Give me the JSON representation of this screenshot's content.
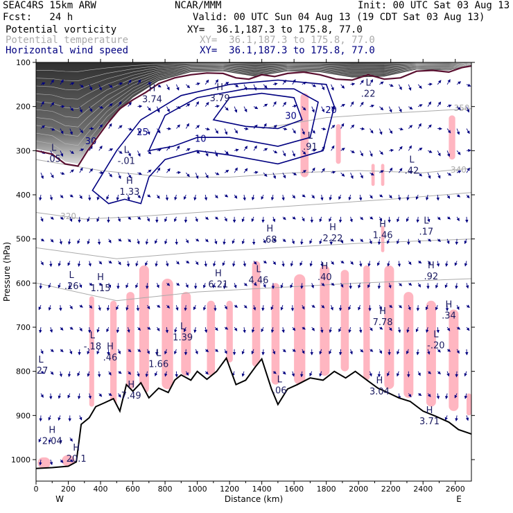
{
  "header": {
    "model": "SEAC4RS 15km ARW",
    "org": "NCAR/MMM",
    "init": "Init: 00 UTC Sat 03 Aug 13",
    "fcst": "Fcst:   24 h",
    "valid": "Valid: 00 UTC Sun 04 Aug 13 (19 CDT Sat 03 Aug 13)",
    "fields": [
      {
        "name": "Potential vorticity",
        "xy": "XY=  36.1,187.3 to 175.8, 77.0",
        "color": "#000000"
      },
      {
        "name": "Potential temperature",
        "xy": "XY=  36.1,187.3 to 175.8, 77.0",
        "color": "#aaaaaa"
      },
      {
        "name": "Horizontal wind speed",
        "xy": "XY=  36.1,187.3 to 175.8, 77.0",
        "color": "#000080"
      }
    ]
  },
  "chart_data": {
    "type": "cross-section",
    "xlabel": "Distance (km)",
    "ylabel": "Pressure (hPa)",
    "xlim": [
      0,
      2700
    ],
    "ylim": [
      1050,
      100
    ],
    "x_ticks": [
      0,
      200,
      400,
      600,
      800,
      1000,
      1200,
      1400,
      1600,
      1800,
      2000,
      2200,
      2400,
      2600
    ],
    "y_ticks": [
      100,
      200,
      300,
      400,
      500,
      600,
      700,
      800,
      900,
      1000
    ],
    "left_end_label": "W",
    "right_end_label": "E",
    "colors": {
      "terrain": "#000000",
      "tropopause_pv": "#5a1030",
      "wind_speed": "#000080",
      "theta": "#aaaaaa",
      "pv_shade": "#ffb6c1",
      "stratosphere": "#404040"
    },
    "terrain": [
      {
        "x": 0,
        "p": 1020
      },
      {
        "x": 100,
        "p": 1018
      },
      {
        "x": 200,
        "p": 1015
      },
      {
        "x": 250,
        "p": 1005
      },
      {
        "x": 280,
        "p": 920
      },
      {
        "x": 330,
        "p": 905
      },
      {
        "x": 370,
        "p": 880
      },
      {
        "x": 420,
        "p": 872
      },
      {
        "x": 480,
        "p": 862
      },
      {
        "x": 520,
        "p": 890
      },
      {
        "x": 560,
        "p": 830
      },
      {
        "x": 600,
        "p": 845
      },
      {
        "x": 650,
        "p": 826
      },
      {
        "x": 700,
        "p": 860
      },
      {
        "x": 760,
        "p": 838
      },
      {
        "x": 820,
        "p": 848
      },
      {
        "x": 860,
        "p": 820
      },
      {
        "x": 900,
        "p": 808
      },
      {
        "x": 960,
        "p": 820
      },
      {
        "x": 1000,
        "p": 800
      },
      {
        "x": 1060,
        "p": 818
      },
      {
        "x": 1120,
        "p": 800
      },
      {
        "x": 1180,
        "p": 770
      },
      {
        "x": 1240,
        "p": 830
      },
      {
        "x": 1300,
        "p": 820
      },
      {
        "x": 1360,
        "p": 790
      },
      {
        "x": 1400,
        "p": 772
      },
      {
        "x": 1460,
        "p": 840
      },
      {
        "x": 1500,
        "p": 875
      },
      {
        "x": 1560,
        "p": 840
      },
      {
        "x": 1620,
        "p": 830
      },
      {
        "x": 1700,
        "p": 815
      },
      {
        "x": 1780,
        "p": 820
      },
      {
        "x": 1850,
        "p": 800
      },
      {
        "x": 1920,
        "p": 815
      },
      {
        "x": 1980,
        "p": 800
      },
      {
        "x": 2060,
        "p": 822
      },
      {
        "x": 2120,
        "p": 838
      },
      {
        "x": 2180,
        "p": 848
      },
      {
        "x": 2250,
        "p": 860
      },
      {
        "x": 2320,
        "p": 868
      },
      {
        "x": 2400,
        "p": 890
      },
      {
        "x": 2480,
        "p": 902
      },
      {
        "x": 2560,
        "p": 915
      },
      {
        "x": 2620,
        "p": 932
      },
      {
        "x": 2700,
        "p": 942
      }
    ],
    "tropopause_pv": [
      {
        "x": 0,
        "p": 300
      },
      {
        "x": 100,
        "p": 308
      },
      {
        "x": 180,
        "p": 330
      },
      {
        "x": 260,
        "p": 335
      },
      {
        "x": 320,
        "p": 300
      },
      {
        "x": 380,
        "p": 270
      },
      {
        "x": 440,
        "p": 240
      },
      {
        "x": 520,
        "p": 205
      },
      {
        "x": 600,
        "p": 185
      },
      {
        "x": 680,
        "p": 168
      },
      {
        "x": 760,
        "p": 148
      },
      {
        "x": 860,
        "p": 135
      },
      {
        "x": 960,
        "p": 128
      },
      {
        "x": 1060,
        "p": 124
      },
      {
        "x": 1160,
        "p": 125
      },
      {
        "x": 1240,
        "p": 135
      },
      {
        "x": 1320,
        "p": 138
      },
      {
        "x": 1400,
        "p": 128
      },
      {
        "x": 1480,
        "p": 132
      },
      {
        "x": 1560,
        "p": 125
      },
      {
        "x": 1660,
        "p": 122
      },
      {
        "x": 1760,
        "p": 128
      },
      {
        "x": 1860,
        "p": 138
      },
      {
        "x": 1960,
        "p": 140
      },
      {
        "x": 2060,
        "p": 128
      },
      {
        "x": 2160,
        "p": 138
      },
      {
        "x": 2260,
        "p": 135
      },
      {
        "x": 2360,
        "p": 120
      },
      {
        "x": 2460,
        "p": 118
      },
      {
        "x": 2560,
        "p": 122
      },
      {
        "x": 2640,
        "p": 112
      },
      {
        "x": 2700,
        "p": 108
      }
    ],
    "stratosphere_shade": [
      {
        "x": 0,
        "p": 100
      },
      {
        "x": 2700,
        "p": 100
      },
      {
        "x": 2700,
        "p": 106
      },
      {
        "x": 2560,
        "p": 118
      },
      {
        "x": 2360,
        "p": 116
      },
      {
        "x": 2160,
        "p": 132
      },
      {
        "x": 1960,
        "p": 134
      },
      {
        "x": 1760,
        "p": 122
      },
      {
        "x": 1560,
        "p": 120
      },
      {
        "x": 1360,
        "p": 132
      },
      {
        "x": 1160,
        "p": 120
      },
      {
        "x": 960,
        "p": 122
      },
      {
        "x": 760,
        "p": 142
      },
      {
        "x": 600,
        "p": 180
      },
      {
        "x": 440,
        "p": 236
      },
      {
        "x": 320,
        "p": 296
      },
      {
        "x": 260,
        "p": 330
      },
      {
        "x": 180,
        "p": 325
      },
      {
        "x": 100,
        "p": 303
      },
      {
        "x": 0,
        "p": 296
      }
    ],
    "theta_contours": [
      {
        "label": "320",
        "label_x": 200,
        "label_p": 455,
        "points": [
          {
            "x": 0,
            "p": 440
          },
          {
            "x": 300,
            "p": 455
          },
          {
            "x": 600,
            "p": 450
          },
          {
            "x": 1000,
            "p": 440
          },
          {
            "x": 1400,
            "p": 430
          },
          {
            "x": 1800,
            "p": 420
          },
          {
            "x": 2200,
            "p": 410
          },
          {
            "x": 2700,
            "p": 395
          }
        ]
      },
      {
        "label": "340",
        "label_x": 2620,
        "label_p": 350,
        "points": [
          {
            "x": 0,
            "p": 320
          },
          {
            "x": 400,
            "p": 345
          },
          {
            "x": 800,
            "p": 360
          },
          {
            "x": 1200,
            "p": 360
          },
          {
            "x": 1600,
            "p": 350
          },
          {
            "x": 2000,
            "p": 345
          },
          {
            "x": 2400,
            "p": 350
          },
          {
            "x": 2700,
            "p": 340
          }
        ]
      },
      {
        "label": "350",
        "label_x": 2640,
        "label_p": 210,
        "points": [
          {
            "x": 1400,
            "p": 250
          },
          {
            "x": 1800,
            "p": 225
          },
          {
            "x": 2200,
            "p": 215
          },
          {
            "x": 2700,
            "p": 205
          }
        ]
      },
      {
        "label": "",
        "label_x": 0,
        "label_p": 0,
        "points": [
          {
            "x": 0,
            "p": 600
          },
          {
            "x": 500,
            "p": 640
          },
          {
            "x": 1000,
            "p": 620
          },
          {
            "x": 1500,
            "p": 610
          },
          {
            "x": 2000,
            "p": 600
          },
          {
            "x": 2700,
            "p": 590
          }
        ]
      },
      {
        "label": "",
        "label_x": 0,
        "label_p": 0,
        "points": [
          {
            "x": 0,
            "p": 520
          },
          {
            "x": 500,
            "p": 545
          },
          {
            "x": 1000,
            "p": 530
          },
          {
            "x": 1500,
            "p": 520
          },
          {
            "x": 2000,
            "p": 510
          },
          {
            "x": 2700,
            "p": 500
          }
        ]
      }
    ],
    "wind_speed_contours": [
      {
        "label": "10",
        "points": [
          {
            "x": 350,
            "p": 390
          },
          {
            "x": 500,
            "p": 300
          },
          {
            "x": 650,
            "p": 230
          },
          {
            "x": 900,
            "p": 175
          },
          {
            "x": 1200,
            "p": 150
          },
          {
            "x": 1500,
            "p": 140
          },
          {
            "x": 1800,
            "p": 150
          },
          {
            "x": 1850,
            "p": 200
          },
          {
            "x": 1780,
            "p": 300
          },
          {
            "x": 1500,
            "p": 330
          },
          {
            "x": 1200,
            "p": 310
          },
          {
            "x": 1000,
            "p": 300
          },
          {
            "x": 800,
            "p": 320
          },
          {
            "x": 700,
            "p": 360
          },
          {
            "x": 650,
            "p": 420
          },
          {
            "x": 550,
            "p": 410
          },
          {
            "x": 450,
            "p": 420
          }
        ]
      },
      {
        "label": "20",
        "points": [
          {
            "x": 700,
            "p": 300
          },
          {
            "x": 800,
            "p": 220
          },
          {
            "x": 1000,
            "p": 180
          },
          {
            "x": 1300,
            "p": 160
          },
          {
            "x": 1600,
            "p": 160
          },
          {
            "x": 1750,
            "p": 190
          },
          {
            "x": 1700,
            "p": 270
          },
          {
            "x": 1500,
            "p": 290
          },
          {
            "x": 1200,
            "p": 270
          },
          {
            "x": 1000,
            "p": 270
          },
          {
            "x": 850,
            "p": 290
          }
        ]
      },
      {
        "label": "30",
        "points": [
          {
            "x": 1100,
            "p": 230
          },
          {
            "x": 1200,
            "p": 180
          },
          {
            "x": 1400,
            "p": 170
          },
          {
            "x": 1600,
            "p": 180
          },
          {
            "x": 1650,
            "p": 230
          },
          {
            "x": 1500,
            "p": 250
          },
          {
            "x": 1300,
            "p": 245
          }
        ]
      }
    ],
    "wind_speed_labels": [
      {
        "text": "10",
        "x": 1020,
        "p": 280
      },
      {
        "text": "20",
        "x": 1830,
        "p": 215
      },
      {
        "text": "30",
        "x": 1580,
        "p": 228
      },
      {
        "text": "25",
        "x": 660,
        "p": 265
      },
      {
        "text": "30",
        "x": 340,
        "p": 285
      }
    ],
    "pv_shaded_regions": [
      {
        "x0": 330,
        "x1": 360,
        "p0": 630,
        "p1": 880
      },
      {
        "x0": 460,
        "x1": 500,
        "p0": 640,
        "p1": 880
      },
      {
        "x0": 560,
        "x1": 610,
        "p0": 620,
        "p1": 840
      },
      {
        "x0": 640,
        "x1": 700,
        "p0": 560,
        "p1": 850
      },
      {
        "x0": 780,
        "x1": 850,
        "p0": 590,
        "p1": 840
      },
      {
        "x0": 900,
        "x1": 960,
        "p0": 620,
        "p1": 810
      },
      {
        "x0": 1060,
        "x1": 1110,
        "p0": 640,
        "p1": 810
      },
      {
        "x0": 1180,
        "x1": 1220,
        "p0": 640,
        "p1": 780
      },
      {
        "x0": 1340,
        "x1": 1390,
        "p0": 550,
        "p1": 790
      },
      {
        "x0": 1460,
        "x1": 1510,
        "p0": 600,
        "p1": 830
      },
      {
        "x0": 1600,
        "x1": 1670,
        "p0": 580,
        "p1": 830
      },
      {
        "x0": 1760,
        "x1": 1820,
        "p0": 560,
        "p1": 810
      },
      {
        "x0": 1890,
        "x1": 1940,
        "p0": 570,
        "p1": 800
      },
      {
        "x0": 2030,
        "x1": 2070,
        "p0": 560,
        "p1": 820
      },
      {
        "x0": 2160,
        "x1": 2220,
        "p0": 560,
        "p1": 840
      },
      {
        "x0": 2280,
        "x1": 2340,
        "p0": 620,
        "p1": 860
      },
      {
        "x0": 2420,
        "x1": 2480,
        "p0": 640,
        "p1": 880
      },
      {
        "x0": 2560,
        "x1": 2620,
        "p0": 660,
        "p1": 890
      },
      {
        "x0": 1640,
        "x1": 1690,
        "p0": 170,
        "p1": 360
      },
      {
        "x0": 1860,
        "x1": 1890,
        "p0": 240,
        "p1": 330
      },
      {
        "x0": 2560,
        "x1": 2600,
        "p0": 220,
        "p1": 320
      },
      {
        "x0": 2140,
        "x1": 2160,
        "p0": 330,
        "p1": 380
      },
      {
        "x0": 2080,
        "x1": 2100,
        "p0": 330,
        "p1": 380
      },
      {
        "x0": 2140,
        "x1": 2160,
        "p0": 470,
        "p1": 530
      },
      {
        "x0": 10,
        "x1": 90,
        "p0": 995,
        "p1": 1020
      },
      {
        "x0": 160,
        "x1": 240,
        "p0": 990,
        "p1": 1015
      },
      {
        "x0": 2670,
        "x1": 2700,
        "p0": 850,
        "p1": 900
      }
    ],
    "pv_extrema": [
      {
        "kind": "L",
        "value": ".05",
        "x": 110,
        "p": 325
      },
      {
        "kind": "L",
        "value": "-.01",
        "x": 560,
        "p": 330
      },
      {
        "kind": "H",
        "value": "1.33",
        "x": 580,
        "p": 400
      },
      {
        "kind": "H",
        "value": "3.74",
        "x": 720,
        "p": 190
      },
      {
        "kind": "H",
        "value": "3.79",
        "x": 1140,
        "p": 188
      },
      {
        "kind": "L",
        "value": ".91",
        "x": 1700,
        "p": 298
      },
      {
        "kind": "L",
        "value": ".22",
        "x": 2060,
        "p": 178
      },
      {
        "kind": "L",
        "value": ".42",
        "x": 2330,
        "p": 352
      },
      {
        "kind": "L",
        "value": ".17",
        "x": 2420,
        "p": 490
      },
      {
        "kind": "H",
        "value": ".68",
        "x": 1450,
        "p": 508
      },
      {
        "kind": "H",
        "value": "2.22",
        "x": 1840,
        "p": 505
      },
      {
        "kind": "H",
        "value": "1.46",
        "x": 2150,
        "p": 498
      },
      {
        "kind": "L",
        "value": ".26",
        "x": 220,
        "p": 614
      },
      {
        "kind": "H",
        "value": "1.15",
        "x": 400,
        "p": 618
      },
      {
        "kind": "H",
        "value": "6.21",
        "x": 1130,
        "p": 610
      },
      {
        "kind": "L",
        "value": "4.46",
        "x": 1380,
        "p": 600
      },
      {
        "kind": "H",
        "value": ".40",
        "x": 1790,
        "p": 593
      },
      {
        "kind": "H",
        "value": ".92",
        "x": 2450,
        "p": 592
      },
      {
        "kind": "L",
        "value": "-.18",
        "x": 350,
        "p": 750
      },
      {
        "kind": "L",
        "value": ".27",
        "x": 30,
        "p": 805
      },
      {
        "kind": "H",
        "value": ".46",
        "x": 460,
        "p": 775
      },
      {
        "kind": "L",
        "value": "1.66",
        "x": 760,
        "p": 790
      },
      {
        "kind": "L",
        "value": "1.39",
        "x": 910,
        "p": 730
      },
      {
        "kind": "H",
        "value": "7.78",
        "x": 2150,
        "p": 695
      },
      {
        "kind": "L",
        "value": "-.20",
        "x": 2480,
        "p": 748
      },
      {
        "kind": "H",
        "value": ".34",
        "x": 2560,
        "p": 680
      },
      {
        "kind": "H",
        "value": "7.49",
        "x": 590,
        "p": 862
      },
      {
        "kind": "L",
        "value": ".06",
        "x": 1510,
        "p": 850
      },
      {
        "kind": "H",
        "value": "3.04",
        "x": 2130,
        "p": 852
      },
      {
        "kind": "H",
        "value": "3.71",
        "x": 2440,
        "p": 920
      },
      {
        "kind": "H",
        "value": "2.04",
        "x": 100,
        "p": 965
      },
      {
        "kind": "H",
        "value": "20.1",
        "x": 250,
        "p": 1005
      }
    ],
    "wind_arrows": {
      "x_step": 60,
      "p_levels": [
        150,
        200,
        250,
        300,
        350,
        400,
        450,
        500,
        550,
        600,
        650,
        700,
        750,
        800,
        850,
        900,
        950,
        1000
      ]
    }
  }
}
